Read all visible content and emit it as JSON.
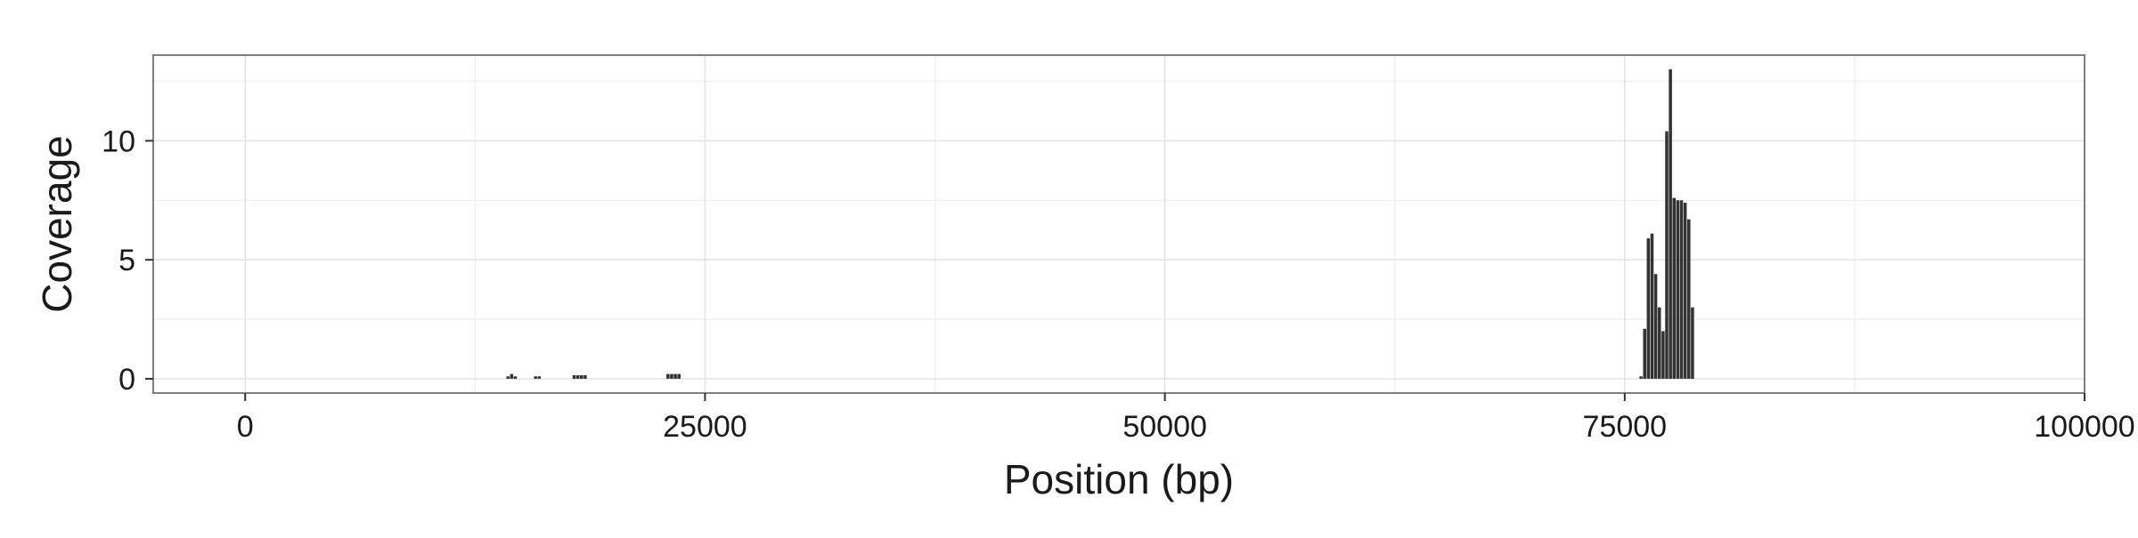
{
  "chart_data": {
    "type": "bar",
    "title": "",
    "xlabel": "Position (bp)",
    "ylabel": "Coverage",
    "xlim": [
      -5000,
      100000
    ],
    "ylim": [
      -0.6,
      13.6
    ],
    "x_ticks": [
      0,
      25000,
      50000,
      75000,
      100000
    ],
    "x_tick_labels": [
      "0",
      "25000",
      "50000",
      "75000",
      "100000"
    ],
    "y_ticks": [
      0,
      5,
      10
    ],
    "y_tick_labels": [
      "0",
      "5",
      "10"
    ],
    "grid": true,
    "legend": "none",
    "bin_width": 200,
    "bar_color": "#333333",
    "x": [
      14300,
      14500,
      14700,
      15800,
      16000,
      17900,
      18100,
      18300,
      18500,
      23000,
      23200,
      23400,
      23600,
      75900,
      76100,
      76300,
      76500,
      76700,
      76900,
      77100,
      77300,
      77500,
      77700,
      77900,
      78100,
      78300,
      78500,
      78700,
      78900,
      79100
    ],
    "values": [
      0.1,
      0.2,
      0.1,
      0.1,
      0.1,
      0.15,
      0.15,
      0.15,
      0.15,
      0.2,
      0.2,
      0.2,
      0.2,
      0.1,
      2.1,
      5.9,
      6.1,
      4.4,
      3.0,
      2.0,
      10.4,
      13.0,
      7.6,
      7.5,
      7.5,
      7.4,
      6.7,
      3.0,
      0.0,
      0.0
    ]
  },
  "colors": {
    "panel_border": "#7f7f7f",
    "grid_major": "#e3e3e3",
    "grid_minor": "#f1f1f1",
    "text": "#1a1a1a"
  }
}
